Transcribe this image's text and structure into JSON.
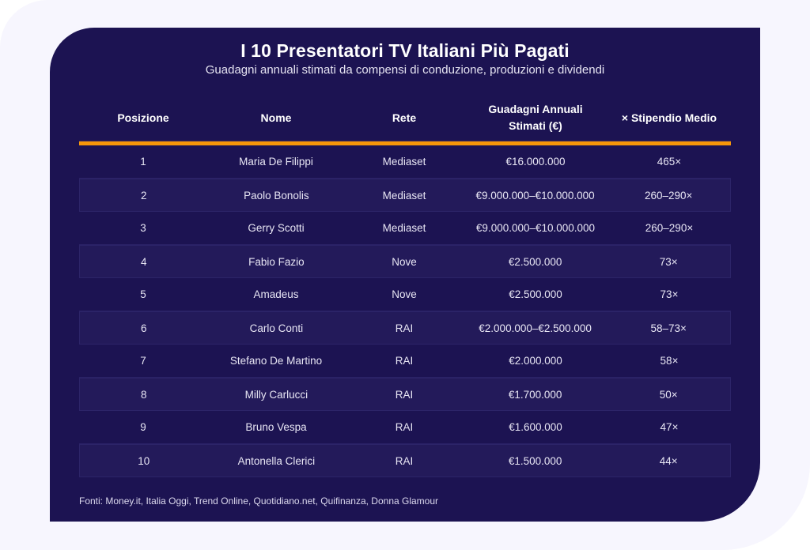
{
  "header": {
    "title": "I 10 Presentatori TV Italiani Più Pagati",
    "subtitle": "Guadagni annuali stimati da compensi di conduzione, produzioni e dividendi"
  },
  "colors": {
    "card_background": "#1c1352",
    "row_alt_background": "#231a5a",
    "accent_bar": "#f7970a",
    "page_background": "#f7f6fe"
  },
  "table": {
    "columns": [
      "Posizione",
      "Nome",
      "Rete",
      "Guadagni Annuali Stimati (€)",
      "× Stipendio Medio"
    ],
    "rows": [
      {
        "position": "1",
        "name": "Maria De Filippi",
        "network": "Mediaset",
        "earnings": "€16.000.000",
        "multiple": "465×"
      },
      {
        "position": "2",
        "name": "Paolo Bonolis",
        "network": "Mediaset",
        "earnings": "€9.000.000–€10.000.000",
        "multiple": "260–290×"
      },
      {
        "position": "3",
        "name": "Gerry Scotti",
        "network": "Mediaset",
        "earnings": "€9.000.000–€10.000.000",
        "multiple": "260–290×"
      },
      {
        "position": "4",
        "name": "Fabio Fazio",
        "network": "Nove",
        "earnings": "€2.500.000",
        "multiple": "73×"
      },
      {
        "position": "5",
        "name": "Amadeus",
        "network": "Nove",
        "earnings": "€2.500.000",
        "multiple": "73×"
      },
      {
        "position": "6",
        "name": "Carlo Conti",
        "network": "RAI",
        "earnings": "€2.000.000–€2.500.000",
        "multiple": "58–73×"
      },
      {
        "position": "7",
        "name": "Stefano De Martino",
        "network": "RAI",
        "earnings": "€2.000.000",
        "multiple": "58×"
      },
      {
        "position": "8",
        "name": "Milly Carlucci",
        "network": "RAI",
        "earnings": "€1.700.000",
        "multiple": "50×"
      },
      {
        "position": "9",
        "name": "Bruno Vespa",
        "network": "RAI",
        "earnings": "€1.600.000",
        "multiple": "47×"
      },
      {
        "position": "10",
        "name": "Antonella Clerici",
        "network": "RAI",
        "earnings": "€1.500.000",
        "multiple": "44×"
      }
    ]
  },
  "footer": {
    "sources": "Fonti: Money.it, Italia Oggi, Trend Online, Quotidiano.net, Quifinanza, Donna Glamour"
  }
}
